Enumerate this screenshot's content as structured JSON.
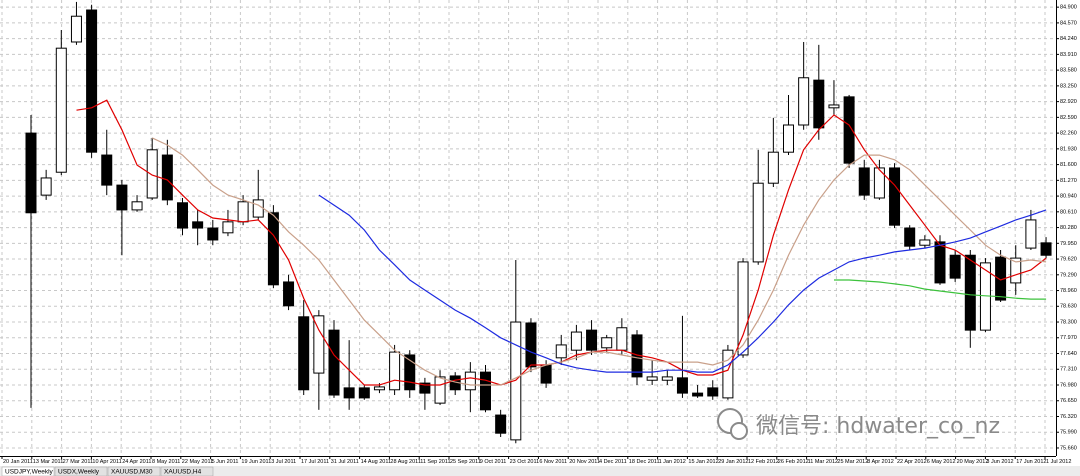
{
  "chart_data": {
    "type": "candlestick",
    "x_labels": [
      "20 Jan 2011",
      "13 Mar 2011",
      "27 Mar 2011",
      "10 Apr 2011",
      "24 Apr 2011",
      "8 May 2011",
      "22 May 2011",
      "5 Jun 2011",
      "19 Jun 2011",
      "3 Jul 2011",
      "17 Jul 2011",
      "31 Jul 2011",
      "14 Aug 2011",
      "28 Aug 2011",
      "11 Sep 2011",
      "25 Sep 2011",
      "9 Oct 2011",
      "23 Oct 2011",
      "6 Nov 2011",
      "20 Nov 2011",
      "4 Dec 2011",
      "18 Dec 2011",
      "1 Jan 2012",
      "15 Jan 2012",
      "29 Jan 2012",
      "12 Feb 2012",
      "26 Feb 2012",
      "11 Mar 2012",
      "25 Mar 2012",
      "8 Apr 2012",
      "22 Apr 2012",
      "6 May 2012",
      "20 May 2012",
      "3 Jun 2012",
      "17 Jun 2012",
      "1 Jul 2012"
    ],
    "open": [
      82.26,
      80.96,
      81.44,
      84.17,
      84.84,
      81.8,
      81.17,
      80.65,
      80.9,
      81.8,
      80.8,
      80.4,
      80.27,
      80.17,
      80.4,
      80.5,
      80.59,
      79.14,
      78.41,
      77.23,
      78.13,
      76.92,
      76.92,
      76.88,
      76.88,
      77.61,
      77.02,
      76.6,
      77.17,
      76.88,
      77.25,
      76.35,
      75.83,
      78.28,
      77.4,
      77.55,
      77.71,
      78.13,
      77.76,
      77.71,
      78.03,
      77.08,
      77.08,
      77.13,
      76.81,
      76.92,
      76.71,
      77.61,
      79.56,
      81.21,
      81.86,
      82.43,
      83.37,
      82.79,
      83.02,
      81.53,
      80.9,
      81.53,
      80.27,
      79.91,
      79.98,
      79.7,
      79.7,
      78.13,
      79.66,
      79.12,
      79.85,
      79.96
    ],
    "high": [
      82.64,
      81.49,
      84.42,
      85.01,
      84.95,
      82.33,
      81.28,
      80.96,
      82.16,
      82.12,
      80.9,
      80.65,
      80.44,
      80.65,
      80.96,
      81.49,
      80.75,
      79.29,
      78.76,
      78.55,
      78.34,
      77.92,
      76.98,
      77.02,
      77.82,
      77.71,
      77.13,
      77.29,
      77.25,
      77.46,
      77.4,
      76.46,
      79.6,
      78.38,
      77.5,
      78.03,
      78.24,
      78.34,
      78.03,
      78.38,
      78.13,
      77.5,
      77.29,
      78.43,
      76.98,
      77.08,
      77.82,
      79.64,
      81.91,
      82.58,
      83.06,
      84.17,
      84.11,
      83.37,
      83.06,
      81.7,
      81.7,
      81.63,
      80.33,
      80.12,
      80.12,
      79.81,
      79.81,
      79.64,
      79.81,
      79.91,
      80.65,
      80.08
    ],
    "low": [
      76.5,
      80.86,
      81.38,
      84.11,
      81.74,
      80.96,
      79.7,
      80.61,
      80.86,
      80.75,
      80.12,
      79.91,
      79.91,
      80.1,
      80.33,
      80.44,
      79.01,
      78.55,
      76.77,
      76.46,
      76.71,
      76.46,
      76.67,
      76.81,
      76.77,
      76.71,
      76.46,
      76.56,
      76.77,
      76.41,
      76.41,
      75.89,
      75.76,
      77.25,
      76.92,
      77.4,
      77.5,
      77.61,
      77.67,
      77.61,
      76.98,
      76.98,
      76.98,
      76.71,
      76.71,
      76.67,
      76.67,
      77.55,
      79.5,
      81.13,
      81.8,
      82.33,
      82.12,
      82.64,
      81.53,
      80.86,
      80.86,
      80.27,
      79.81,
      79.85,
      79.08,
      79.14,
      77.76,
      78.09,
      78.72,
      78.87,
      79.81,
      79.64
    ],
    "close": [
      80.59,
      81.32,
      84.04,
      84.71,
      81.86,
      81.17,
      80.65,
      80.82,
      81.91,
      80.86,
      80.27,
      80.27,
      80.02,
      80.4,
      80.82,
      80.86,
      79.08,
      78.64,
      76.88,
      78.43,
      76.77,
      76.71,
      76.71,
      76.94,
      77.67,
      76.88,
      76.81,
      77.15,
      76.88,
      77.25,
      76.46,
      75.97,
      78.3,
      77.36,
      77.02,
      77.82,
      78.09,
      77.71,
      77.97,
      78.18,
      77.15,
      77.15,
      77.15,
      76.81,
      76.75,
      76.75,
      77.71,
      79.56,
      81.21,
      81.86,
      82.43,
      83.42,
      82.37,
      82.85,
      81.63,
      80.96,
      81.53,
      80.33,
      79.89,
      80.02,
      79.12,
      79.22,
      78.13,
      79.54,
      78.76,
      79.64,
      80.44,
      79.7
    ],
    "up_color": "#ffffff",
    "down_color": "#000000",
    "overlays": [
      {
        "color": "#e00000",
        "values": [
          null,
          null,
          null,
          82.74,
          82.79,
          82.95,
          82.33,
          81.59,
          81.38,
          81.28,
          80.96,
          80.65,
          80.48,
          80.44,
          80.4,
          80.44,
          80.12,
          79.6,
          78.8,
          78.13,
          77.61,
          77.29,
          76.98,
          76.98,
          77.08,
          77.04,
          76.98,
          76.98,
          77.08,
          77.13,
          77.08,
          76.98,
          77.08,
          77.4,
          77.4,
          77.46,
          77.61,
          77.67,
          77.71,
          77.71,
          77.61,
          77.55,
          77.46,
          77.29,
          77.19,
          77.19,
          77.29,
          78.03,
          78.97,
          80.12,
          81.07,
          81.91,
          82.33,
          82.64,
          82.43,
          81.91,
          81.49,
          81.17,
          80.75,
          80.33,
          79.91,
          79.81,
          79.6,
          79.39,
          79.18,
          79.29,
          79.39,
          79.64
        ]
      },
      {
        "color": "#c9a08a",
        "values": [
          null,
          null,
          null,
          null,
          null,
          null,
          null,
          null,
          82.16,
          82.01,
          81.8,
          81.49,
          81.17,
          80.96,
          80.86,
          80.75,
          80.54,
          80.19,
          79.91,
          79.6,
          79.18,
          78.76,
          78.34,
          78.03,
          77.71,
          77.5,
          77.29,
          77.13,
          77.04,
          76.98,
          76.98,
          76.98,
          77.13,
          77.29,
          77.4,
          77.46,
          77.55,
          77.67,
          77.67,
          77.61,
          77.55,
          77.5,
          77.46,
          77.46,
          77.46,
          77.4,
          77.5,
          77.82,
          78.34,
          78.97,
          79.7,
          80.33,
          80.86,
          81.28,
          81.59,
          81.8,
          81.8,
          81.7,
          81.49,
          81.17,
          80.86,
          80.54,
          80.23,
          79.91,
          79.7,
          79.56,
          79.6,
          79.56
        ]
      },
      {
        "color": "#1e2be0",
        "values": [
          null,
          null,
          null,
          null,
          null,
          null,
          null,
          null,
          null,
          null,
          null,
          null,
          null,
          null,
          null,
          null,
          null,
          null,
          null,
          80.96,
          80.75,
          80.54,
          80.23,
          79.81,
          79.5,
          79.18,
          78.97,
          78.76,
          78.55,
          78.38,
          78.18,
          77.97,
          77.82,
          77.67,
          77.55,
          77.42,
          77.34,
          77.29,
          77.25,
          77.25,
          77.25,
          77.25,
          77.29,
          77.29,
          77.25,
          77.25,
          77.4,
          77.67,
          77.97,
          78.3,
          78.66,
          78.97,
          79.22,
          79.39,
          79.56,
          79.64,
          79.7,
          79.77,
          79.81,
          79.85,
          79.91,
          79.98,
          80.06,
          80.19,
          80.31,
          80.44,
          80.54,
          80.65
        ]
      },
      {
        "color": "#3cc23c",
        "values": [
          null,
          null,
          null,
          null,
          null,
          null,
          null,
          null,
          null,
          null,
          null,
          null,
          null,
          null,
          null,
          null,
          null,
          null,
          null,
          null,
          null,
          null,
          null,
          null,
          null,
          null,
          null,
          null,
          null,
          null,
          null,
          null,
          null,
          null,
          null,
          null,
          null,
          null,
          null,
          null,
          null,
          null,
          null,
          null,
          null,
          null,
          null,
          null,
          null,
          null,
          null,
          null,
          null,
          79.18,
          79.18,
          79.16,
          79.14,
          79.1,
          79.06,
          78.99,
          78.95,
          78.91,
          78.87,
          78.85,
          78.83,
          78.8,
          78.78,
          78.78
        ]
      }
    ],
    "ylim": [
      75.45,
      85.05
    ],
    "yticks": [
      {
        "value": 84.9,
        "label": "84.900"
      },
      {
        "value": 84.57,
        "label": "84.570"
      },
      {
        "value": 84.24,
        "label": "84.240"
      },
      {
        "value": 83.91,
        "label": "83.910"
      },
      {
        "value": 83.58,
        "label": "83.580"
      },
      {
        "value": 83.25,
        "label": "83.250"
      },
      {
        "value": 82.92,
        "label": "82.920"
      },
      {
        "value": 82.59,
        "label": "82.590"
      },
      {
        "value": 82.26,
        "label": "82.260"
      },
      {
        "value": 81.93,
        "label": "81.930"
      },
      {
        "value": 81.6,
        "label": "81.600"
      },
      {
        "value": 81.27,
        "label": "81.270"
      },
      {
        "value": 80.94,
        "label": "80.940"
      },
      {
        "value": 80.61,
        "label": "80.610"
      },
      {
        "value": 80.28,
        "label": "80.280"
      },
      {
        "value": 79.95,
        "label": "79.950"
      },
      {
        "value": 79.62,
        "label": "79.620"
      },
      {
        "value": 79.29,
        "label": "79.290"
      },
      {
        "value": 78.96,
        "label": "78.960"
      },
      {
        "value": 78.63,
        "label": "78.630"
      },
      {
        "value": 78.3,
        "label": "78.300"
      },
      {
        "value": 77.97,
        "label": "77.970"
      },
      {
        "value": 77.64,
        "label": "77.640"
      },
      {
        "value": 77.31,
        "label": "77.310"
      },
      {
        "value": 76.98,
        "label": "76.980"
      },
      {
        "value": 76.65,
        "label": "76.650"
      },
      {
        "value": 76.32,
        "label": "76.320"
      },
      {
        "value": 75.99,
        "label": "75.990"
      },
      {
        "value": 75.66,
        "label": "75.660"
      }
    ],
    "grid": true
  },
  "watermark": "微信号: hdwater_co_nz",
  "tabs": [
    "USDJPY,Weekly",
    "USDX,Weekly",
    "XAUUSD,M30",
    "XAUUSD,H4"
  ]
}
